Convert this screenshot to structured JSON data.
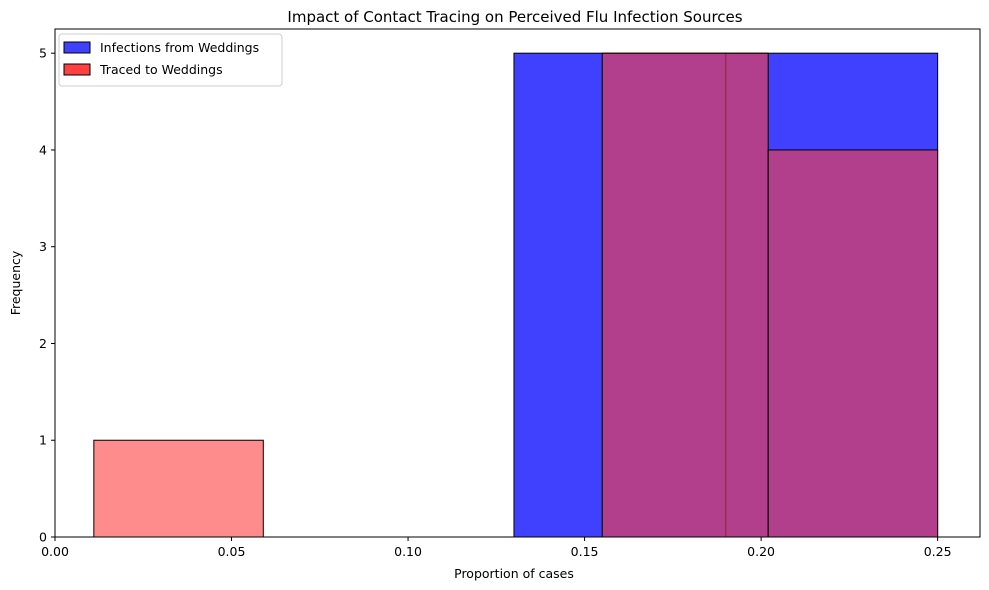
{
  "chart_data": {
    "type": "bar",
    "title": "Impact of Contact Tracing on Perceived Flu Infection Sources",
    "xlabel": "Proportion of cases",
    "ylabel": "Frequency",
    "xlim": [
      0.0,
      0.262
    ],
    "ylim": [
      0,
      5.25
    ],
    "xticks": [
      "0.00",
      "0.05",
      "0.10",
      "0.15",
      "0.20",
      "0.25"
    ],
    "yticks": [
      "0",
      "1",
      "2",
      "3",
      "4",
      "5"
    ],
    "legend_position": "top-left",
    "grid": false,
    "series": [
      {
        "name": "Infections from Weddings",
        "color": "#4040ff",
        "bins": [
          {
            "x0": 0.13,
            "x1": 0.19,
            "count": 5
          },
          {
            "x0": 0.19,
            "x1": 0.25,
            "count": 5
          }
        ]
      },
      {
        "name": "Traced to Weddings",
        "color": "#ff4040",
        "bins": [
          {
            "x0": 0.011,
            "x1": 0.059,
            "count": 1
          },
          {
            "x0": 0.059,
            "x1": 0.107,
            "count": 0
          },
          {
            "x0": 0.107,
            "x1": 0.155,
            "count": 0
          },
          {
            "x0": 0.155,
            "x1": 0.202,
            "count": 5
          },
          {
            "x0": 0.202,
            "x1": 0.25,
            "count": 4
          }
        ]
      }
    ]
  }
}
